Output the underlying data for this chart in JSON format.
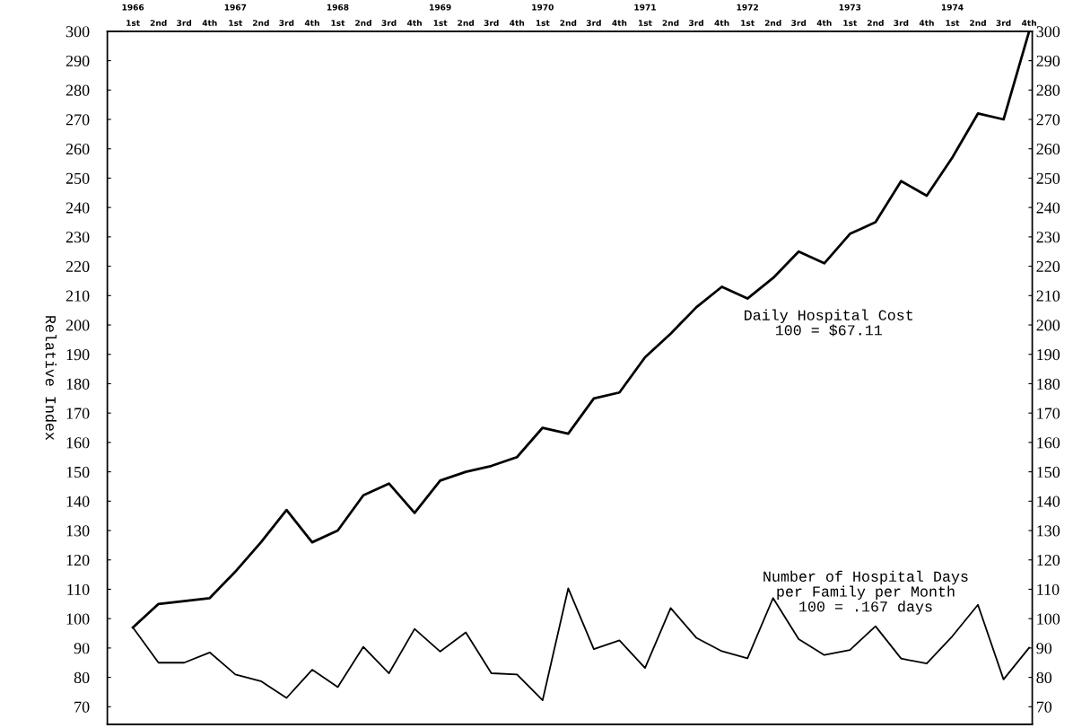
{
  "chart_data": {
    "type": "line",
    "ylabel": "Relative Index",
    "categories": [
      "1st",
      "2nd",
      "3rd",
      "4th",
      "1st",
      "2nd",
      "3rd",
      "4th",
      "1st",
      "2nd",
      "3rd",
      "4th",
      "1st",
      "2nd",
      "3rd",
      "4th",
      "1st",
      "2nd",
      "3rd",
      "4th",
      "1st",
      "2nd",
      "3rd",
      "4th",
      "1st",
      "2nd",
      "3rd",
      "4th",
      "1st",
      "2nd",
      "3rd",
      "4th",
      "1st",
      "2nd",
      "3rd",
      "4th"
    ],
    "annotations": [
      "1966",
      "1967",
      "1968",
      "1969",
      "1970",
      "1971",
      "1972",
      "1973",
      "1974"
    ],
    "series": [
      {
        "name": "Daily Hospital Cost\n100 = $67.11",
        "color": "#000000",
        "values": [
          97,
          105,
          106,
          107,
          116,
          126,
          137,
          126,
          130,
          142,
          146,
          136,
          147,
          150,
          152,
          155,
          165,
          163,
          175,
          177,
          189,
          197,
          206,
          213,
          209,
          216,
          225,
          221,
          231,
          235,
          249,
          244,
          257,
          272,
          270,
          300
        ]
      },
      {
        "name": "Number of Hospital Days\nper Family per Month\n100 = .167 days",
        "color": "#000000",
        "values": [
          97,
          85,
          85,
          88.5,
          81,
          78.7,
          73,
          82.6,
          76.7,
          90.4,
          81.4,
          96.5,
          88.8,
          95.3,
          81.4,
          81,
          72.2,
          110.3,
          89.6,
          92.6,
          83.2,
          103.6,
          93.5,
          88.9,
          86.5,
          107,
          93,
          87.6,
          89.3,
          97.4,
          86.4,
          84.7,
          94,
          104.7,
          79.3,
          90.1
        ]
      }
    ],
    "ylim": [
      64,
      300
    ],
    "yticks": [
      70,
      80,
      90,
      100,
      110,
      120,
      130,
      140,
      150,
      160,
      170,
      180,
      190,
      200,
      210,
      220,
      230,
      240,
      250,
      260,
      270,
      280,
      290,
      300
    ],
    "y2lim": [
      64,
      300
    ],
    "y2ticks": [
      70,
      80,
      90,
      100,
      110,
      120,
      130,
      140,
      150,
      160,
      170,
      180,
      190,
      200,
      210,
      220,
      230,
      240,
      250,
      260,
      270,
      280,
      290,
      300
    ],
    "grid": false,
    "legend": false,
    "marker": "none",
    "line_style": "solid"
  }
}
